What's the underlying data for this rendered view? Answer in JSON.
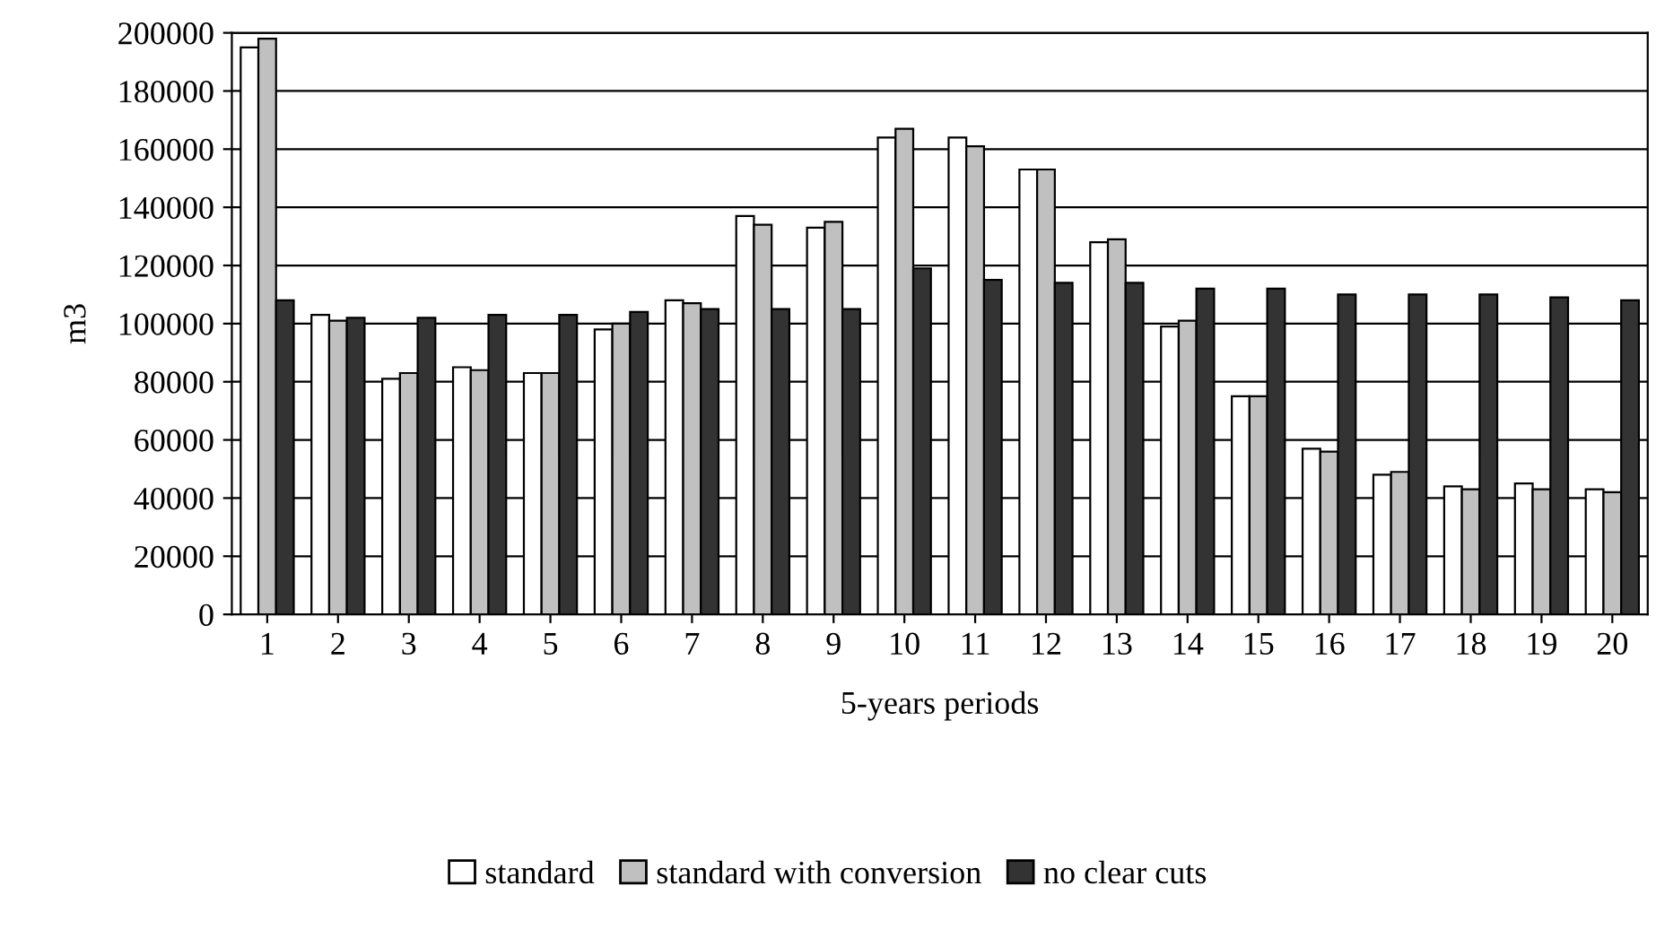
{
  "chart_data": {
    "type": "bar",
    "xlabel": "5-years periods",
    "ylabel": "m3",
    "categories": [
      "1",
      "2",
      "3",
      "4",
      "5",
      "6",
      "7",
      "8",
      "9",
      "10",
      "11",
      "12",
      "13",
      "14",
      "15",
      "16",
      "17",
      "18",
      "19",
      "20"
    ],
    "series": [
      {
        "name": "standard",
        "color": "#ffffff",
        "values": [
          195000,
          103000,
          81000,
          85000,
          83000,
          98000,
          108000,
          137000,
          133000,
          164000,
          164000,
          153000,
          128000,
          99000,
          75000,
          57000,
          48000,
          44000,
          45000,
          43000
        ]
      },
      {
        "name": "standard with conversion",
        "color": "#c0c0c0",
        "values": [
          198000,
          101000,
          83000,
          84000,
          83000,
          100000,
          107000,
          134000,
          135000,
          167000,
          161000,
          153000,
          129000,
          101000,
          75000,
          56000,
          49000,
          43000,
          43000,
          42000
        ]
      },
      {
        "name": "no clear cuts",
        "color": "#333333",
        "values": [
          108000,
          102000,
          102000,
          103000,
          103000,
          104000,
          105000,
          105000,
          105000,
          119000,
          115000,
          114000,
          114000,
          112000,
          112000,
          110000,
          110000,
          110000,
          109000,
          108000
        ]
      }
    ],
    "ylim": [
      0,
      200000
    ],
    "yticks": [
      0,
      20000,
      40000,
      60000,
      80000,
      100000,
      120000,
      140000,
      160000,
      180000,
      200000
    ],
    "grid": "y",
    "legend": "bottom"
  }
}
